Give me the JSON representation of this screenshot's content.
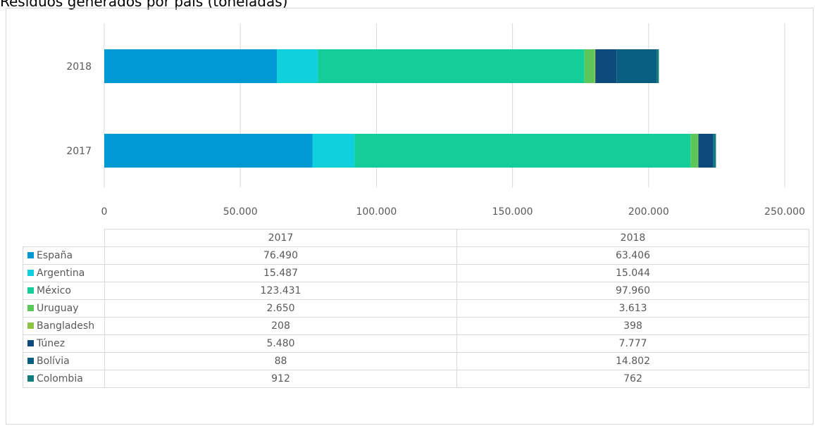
{
  "chart_data": {
    "type": "bar",
    "orientation": "horizontal",
    "stacked": true,
    "title": "Residuos generados por país (toneladas)",
    "categories": [
      "2017",
      "2018"
    ],
    "series": [
      {
        "name": "España",
        "values": [
          76490,
          63406
        ],
        "values_label": [
          "76.490",
          "63.406"
        ],
        "color": "#0099d4"
      },
      {
        "name": "Argentina",
        "values": [
          15487,
          15044
        ],
        "values_label": [
          "15.487",
          "15.044"
        ],
        "color": "#0fd0dc"
      },
      {
        "name": "México",
        "values": [
          123431,
          97960
        ],
        "values_label": [
          "123.431",
          "97.960"
        ],
        "color": "#13ce98"
      },
      {
        "name": "Uruguay",
        "values": [
          2650,
          3613
        ],
        "values_label": [
          "2.650",
          "3.613"
        ],
        "color": "#5cc65a"
      },
      {
        "name": "Bangladesh",
        "values": [
          208,
          398
        ],
        "values_label": [
          "208",
          "398"
        ],
        "color": "#8ec443"
      },
      {
        "name": "Túnez",
        "values": [
          5480,
          7777
        ],
        "values_label": [
          "5.480",
          "7.777"
        ],
        "color": "#0e4b7c"
      },
      {
        "name": "Bolívia",
        "values": [
          88,
          14802
        ],
        "values_label": [
          "88",
          "14.802"
        ],
        "color": "#075e80"
      },
      {
        "name": "Colombia",
        "values": [
          912,
          762
        ],
        "values_label": [
          "912",
          "762"
        ],
        "color": "#127c7c"
      }
    ],
    "xlim": [
      0,
      250000
    ],
    "x_ticks": [
      0,
      50000,
      100000,
      150000,
      200000,
      250000
    ],
    "x_tick_labels": [
      "0",
      "50.000",
      "100.000",
      "150.000",
      "200.000",
      "250.000"
    ],
    "grid": "vertical",
    "legend": "data-table"
  },
  "table": {
    "columns": [
      "2017",
      "2018"
    ]
  }
}
